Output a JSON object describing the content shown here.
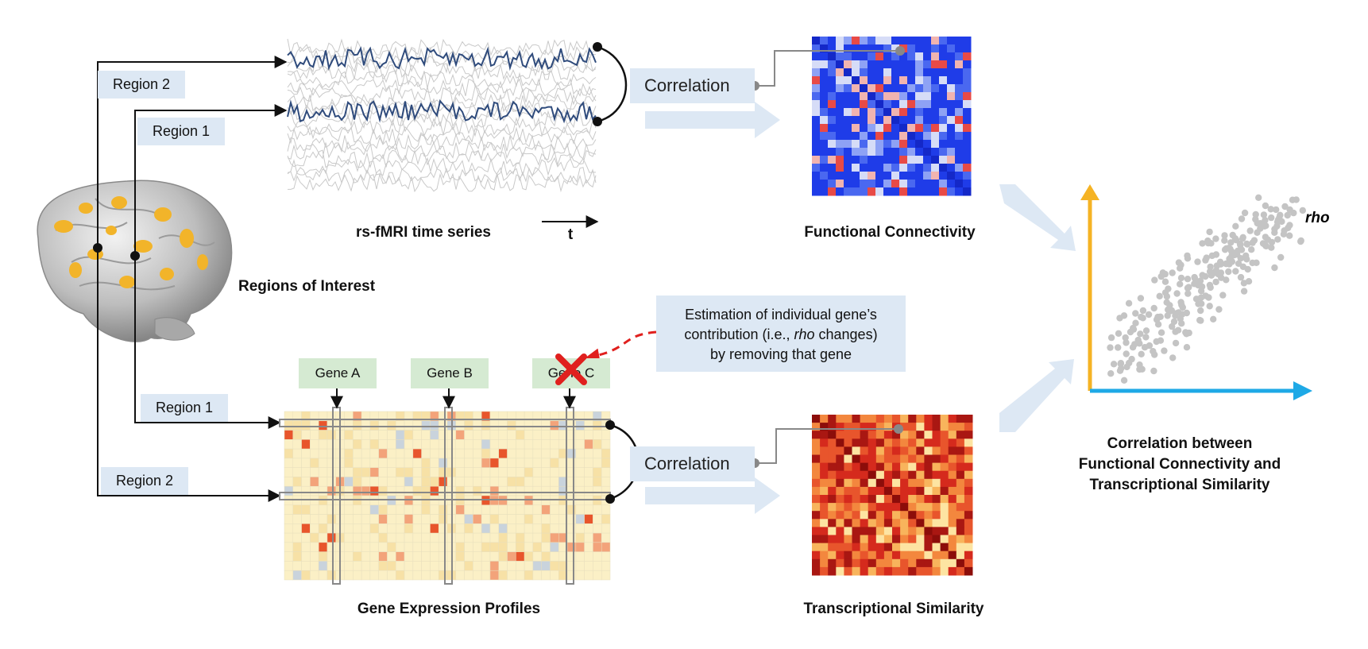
{
  "labels": {
    "region_1": "Region 1",
    "region_2": "Region 2",
    "correlation": "Correlation",
    "gene_a": "Gene A",
    "gene_b": "Gene B",
    "gene_c": "Gene C",
    "rs_fmri": "rs-fMRI time series",
    "t_axis": "t",
    "functional_connectivity": "Functional Connectivity",
    "regions_of_interest": "Regions of Interest",
    "gene_expression_profiles": "Gene Expression Profiles",
    "transcriptional_similarity": "Transcriptional Similarity",
    "result_caption_line1": "Correlation between",
    "result_caption_line2": "Functional Connectivity and",
    "result_caption_line3": "Transcriptional Similarity",
    "rho": "rho"
  },
  "callout": {
    "line1": "Estimation of individual gene’s",
    "line2_prefix": "contribution (i.e., ",
    "line2_italic": "rho",
    "line2_suffix": " changes)",
    "line3": "by removing that gene"
  },
  "colors": {
    "timeseries_highlight": "#2f4b7c",
    "timeseries_background": "#c9c9c9",
    "label_box": "#dde8f4",
    "gene_box": "#d5ead2",
    "fc_matrix": "#1f3ce8",
    "ts_matrix": "#c8201a",
    "axis_y": "#f5b324",
    "axis_x": "#1ea9e6",
    "scatter_points": "#c4c4c4",
    "removal_mark": "#e0201e",
    "brain_roi": "#f2b42a"
  },
  "icons": [
    "brain-image",
    "remove-x-icon"
  ]
}
